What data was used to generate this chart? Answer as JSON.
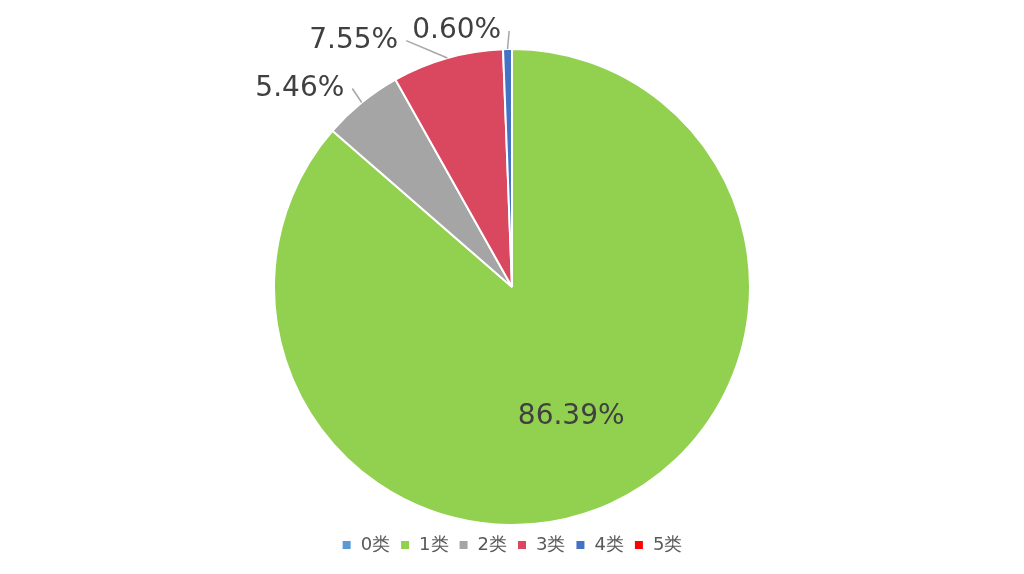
{
  "chart_data": {
    "type": "pie",
    "categories": [
      "0类",
      "1类",
      "2类",
      "3类",
      "4类",
      "5类"
    ],
    "values": [
      0,
      86.39,
      5.46,
      7.55,
      0.6,
      0
    ],
    "colors": [
      "#5b9bd5",
      "#92d050",
      "#a5a5a5",
      "#d9485f",
      "#4472c4",
      "#ff0000"
    ],
    "value_labels": [
      null,
      "86.39%",
      "5.46%",
      "7.55%",
      "0.60%",
      null
    ],
    "legend": "bottom"
  }
}
